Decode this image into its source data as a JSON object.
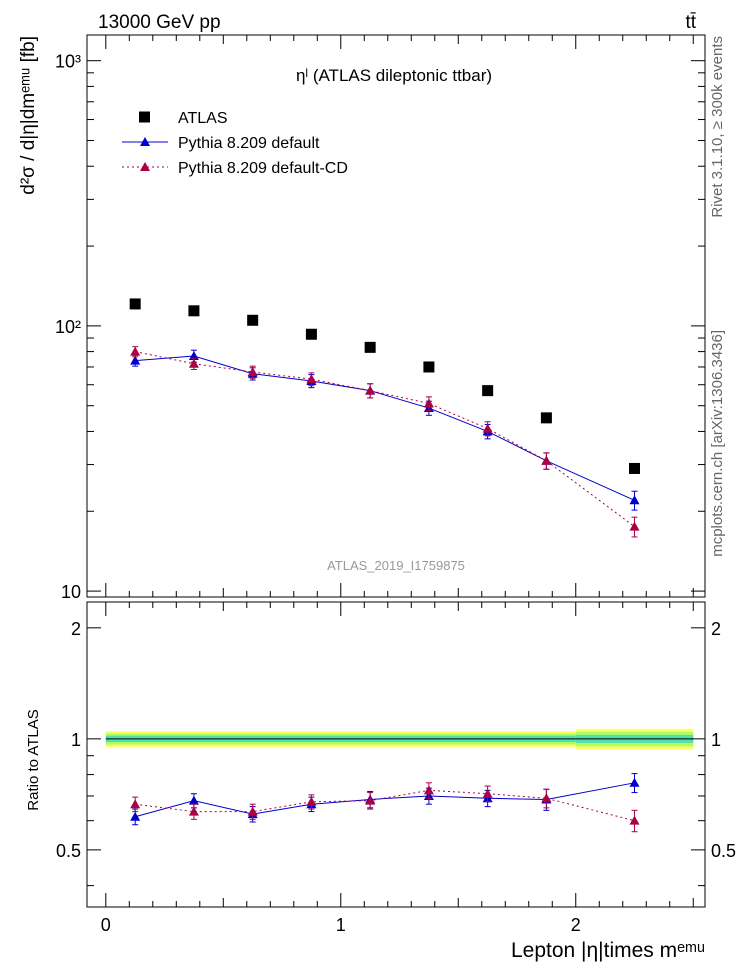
{
  "header": {
    "left": "13000 GeV pp",
    "right": "tt̄"
  },
  "side_labels": {
    "rivet": "Rivet 3.1.10, ≥ 300k events",
    "mcplots": "mcplots.cern.ch [arXiv:1306.3436]"
  },
  "chart_data": {
    "type": "scatter",
    "title": "ηˡ (ATLAS dileptonic ttbar)",
    "analysis_label": "ATLAS_2019_I1759875",
    "xlabel": "Lepton |η|times mᵉᵐᵘ",
    "ylabel": "d²σ / d|η|dmᵉᵐᵘ [fb]",
    "ratio_ylabel": "Ratio to ATLAS",
    "xlim": [
      -0.08,
      2.55
    ],
    "main": {
      "ylim": [
        9.5,
        1250
      ],
      "yscale": "log",
      "yticks": [
        {
          "value": 10,
          "label": "10"
        },
        {
          "value": 100,
          "label": "10²"
        },
        {
          "value": 1000,
          "label": "10³"
        }
      ]
    },
    "ratio": {
      "ylim": [
        0.35,
        2.35
      ],
      "yscale": "log",
      "yticks": [
        {
          "value": 0.5,
          "label": "0.5"
        },
        {
          "value": 1,
          "label": "1"
        },
        {
          "value": 2,
          "label": "2"
        }
      ]
    },
    "xticks": [
      {
        "value": 0,
        "label": "0"
      },
      {
        "value": 1,
        "label": "1"
      },
      {
        "value": 2,
        "label": "2"
      }
    ],
    "legend": {
      "position": "top-left"
    },
    "band": [
      {
        "x0": 0.0,
        "x1": 2.0,
        "inner": [
          0.98,
          1.02
        ],
        "mid": [
          0.965,
          1.035
        ],
        "outer": [
          0.95,
          1.05
        ]
      },
      {
        "x0": 2.0,
        "x1": 2.5,
        "inner": [
          0.975,
          1.025
        ],
        "mid": [
          0.955,
          1.045
        ],
        "outer": [
          0.935,
          1.065
        ]
      }
    ],
    "series": [
      {
        "name": "ATLAS",
        "style": "data",
        "color": "#000000",
        "x": [
          0.125,
          0.375,
          0.625,
          0.875,
          1.125,
          1.375,
          1.625,
          1.875,
          2.25
        ],
        "y": [
          121,
          114,
          105,
          93,
          83,
          70,
          57,
          45,
          29
        ]
      },
      {
        "name": "Pythia 8.209 default",
        "style": "solid",
        "color": "#0000cc",
        "x": [
          0.125,
          0.375,
          0.625,
          0.875,
          1.125,
          1.375,
          1.625,
          1.875,
          2.25
        ],
        "y": [
          74,
          77,
          66,
          62,
          57,
          49,
          40,
          31,
          22
        ],
        "yerr": [
          3.5,
          4,
          3.5,
          3.5,
          3.5,
          3,
          2.5,
          2.2,
          1.8
        ],
        "ratio": [
          0.615,
          0.68,
          0.625,
          0.665,
          0.685,
          0.7,
          0.69,
          0.685,
          0.76
        ],
        "ratio_err": [
          0.03,
          0.03,
          0.03,
          0.03,
          0.035,
          0.035,
          0.035,
          0.045,
          0.045
        ]
      },
      {
        "name": "Pythia 8.209 default-CD",
        "style": "dotted",
        "color": "#aa0044",
        "x": [
          0.125,
          0.375,
          0.625,
          0.875,
          1.125,
          1.375,
          1.625,
          1.875,
          2.25
        ],
        "y": [
          80,
          72,
          67,
          63,
          57,
          51,
          41,
          31,
          17.5
        ],
        "yerr": [
          3.5,
          3.5,
          3.5,
          3.5,
          3.5,
          3,
          2.5,
          2.2,
          1.5
        ],
        "ratio": [
          0.665,
          0.635,
          0.635,
          0.675,
          0.68,
          0.725,
          0.71,
          0.69,
          0.6
        ],
        "ratio_err": [
          0.03,
          0.03,
          0.03,
          0.03,
          0.035,
          0.035,
          0.035,
          0.04,
          0.04
        ]
      }
    ]
  }
}
